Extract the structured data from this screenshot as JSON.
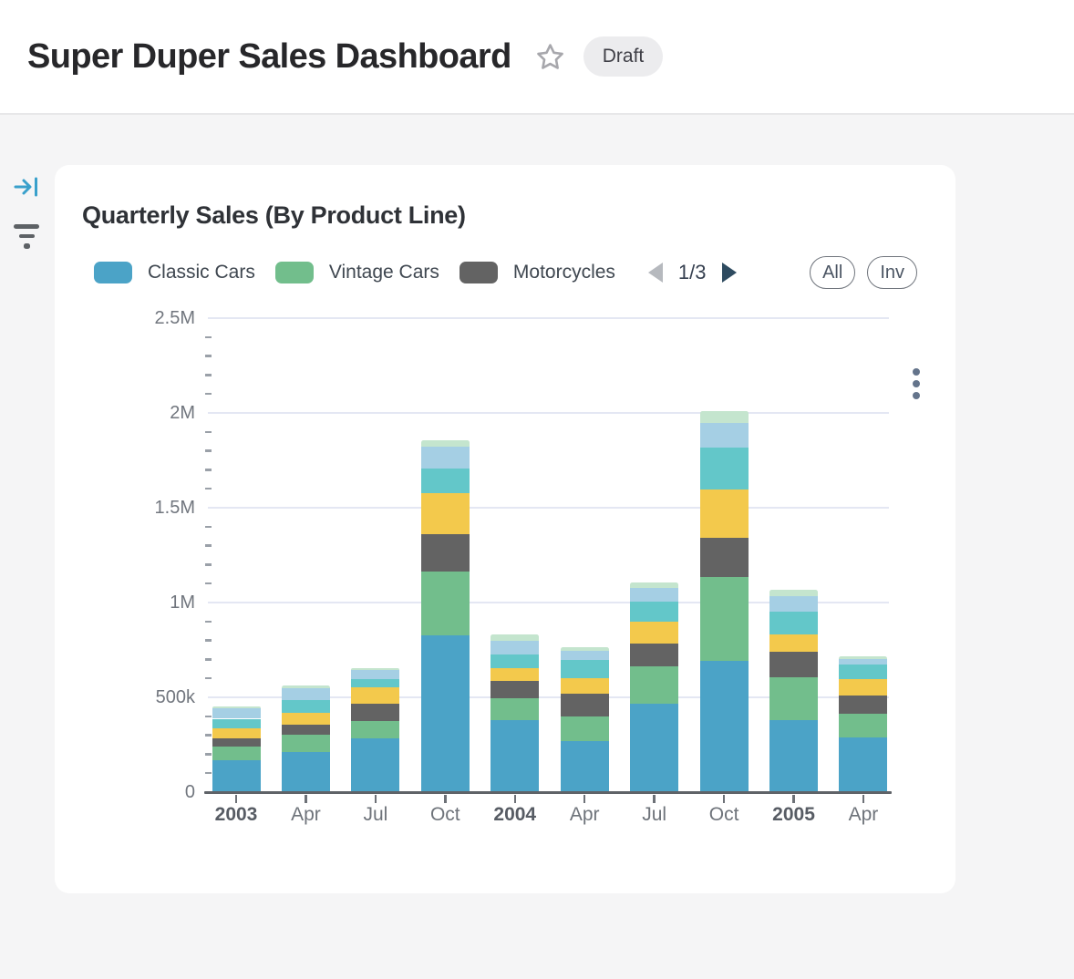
{
  "header": {
    "title": "Super Duper Sales Dashboard",
    "badge": "Draft"
  },
  "sidebar": {
    "icons": [
      "collapse-panel-icon",
      "filter-icon"
    ]
  },
  "card": {
    "title": "Quarterly Sales (By Product Line)",
    "legend": {
      "items": [
        {
          "label": "Classic Cars",
          "color": "#4BA3C7"
        },
        {
          "label": "Vintage Cars",
          "color": "#72BE8C"
        },
        {
          "label": "Motorcycles",
          "color": "#636363"
        }
      ],
      "page_indicator": "1/3",
      "prev_enabled": false,
      "next_enabled": true,
      "all_label": "All",
      "inv_label": "Inv"
    }
  },
  "chart_data": {
    "type": "bar",
    "stacked": true,
    "title": "Quarterly Sales (By Product Line)",
    "categories": [
      "2003",
      "Apr",
      "Jul",
      "Oct",
      "2004",
      "Apr",
      "Jul",
      "Oct",
      "2005",
      "Apr"
    ],
    "bold_categories": [
      "2003",
      "2004",
      "2005"
    ],
    "ylim": [
      0,
      2500000
    ],
    "yticks": [
      0,
      500000,
      1000000,
      1500000,
      2000000,
      2500000
    ],
    "ytick_labels": [
      "0",
      "500k",
      "1M",
      "1.5M",
      "2M",
      "2.5M"
    ],
    "minor_tick_interval": 100000,
    "grid": "horizontal major gridlines, left-edge minor ticks",
    "legend_position": "top",
    "series": [
      {
        "name": "Classic Cars",
        "color": "#4BA3C7",
        "values": [
          168000,
          210000,
          282000,
          826000,
          381000,
          267000,
          464000,
          693000,
          379000,
          290000
        ]
      },
      {
        "name": "Vintage Cars",
        "color": "#72BE8C",
        "values": [
          73000,
          95000,
          95000,
          339000,
          115000,
          133000,
          200000,
          440000,
          229000,
          123000
        ]
      },
      {
        "name": "Motorcycles",
        "color": "#636363",
        "values": [
          45000,
          52000,
          90000,
          197000,
          90000,
          120000,
          120000,
          208000,
          133000,
          96000
        ]
      },
      {
        "name": "(unlabeled series - yellow)",
        "color": "#F3C94C",
        "values": [
          52000,
          63000,
          87000,
          216000,
          67000,
          83000,
          115000,
          254000,
          91000,
          88000
        ]
      },
      {
        "name": "(unlabeled series - teal)",
        "color": "#63C7C9",
        "values": [
          49000,
          67000,
          40000,
          131000,
          74000,
          93000,
          104000,
          224000,
          120000,
          77000
        ]
      },
      {
        "name": "(unlabeled series - light blue)",
        "color": "#A5CFE4",
        "values": [
          54000,
          62000,
          48000,
          114000,
          70000,
          51000,
          74000,
          128000,
          80000,
          30000
        ]
      },
      {
        "name": "(unlabeled series - pale green)",
        "color": "#C4E5CE",
        "values": [
          10000,
          13000,
          13000,
          34000,
          35000,
          18000,
          30000,
          64000,
          35000,
          13000
        ]
      }
    ]
  }
}
